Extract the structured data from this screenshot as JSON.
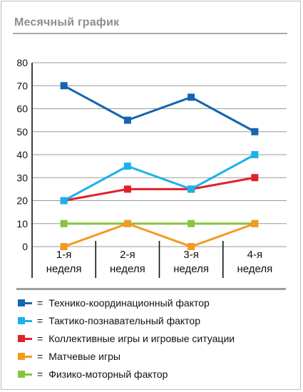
{
  "chart_data": {
    "type": "line",
    "title": "Месячный график",
    "categories": [
      [
        "1-я",
        "неделя"
      ],
      [
        "2-я",
        "неделя"
      ],
      [
        "3-я",
        "неделя"
      ],
      [
        "4-я",
        "неделя"
      ]
    ],
    "ylim": [
      0,
      80
    ],
    "yticks": [
      0,
      10,
      20,
      30,
      40,
      50,
      60,
      70,
      80
    ],
    "grid": true,
    "legend_position": "bottom",
    "legend_marker": "=",
    "series": [
      {
        "name": "Технико-координационный фактор",
        "color": "#1565b0",
        "values": [
          70,
          55,
          65,
          50
        ]
      },
      {
        "name": "Тактико-познавательный фактор",
        "color": "#1ab2ea",
        "values": [
          20,
          35,
          25,
          40
        ]
      },
      {
        "name": "Коллективные игры и игровые ситуации",
        "color": "#e0202a",
        "values": [
          20,
          25,
          25,
          30
        ]
      },
      {
        "name": "Матчевые игры",
        "color": "#f39a1e",
        "values": [
          0,
          10,
          0,
          10
        ]
      },
      {
        "name": "Физико-моторный фактор",
        "color": "#86c43f",
        "values": [
          10,
          10,
          10,
          10
        ]
      }
    ]
  }
}
